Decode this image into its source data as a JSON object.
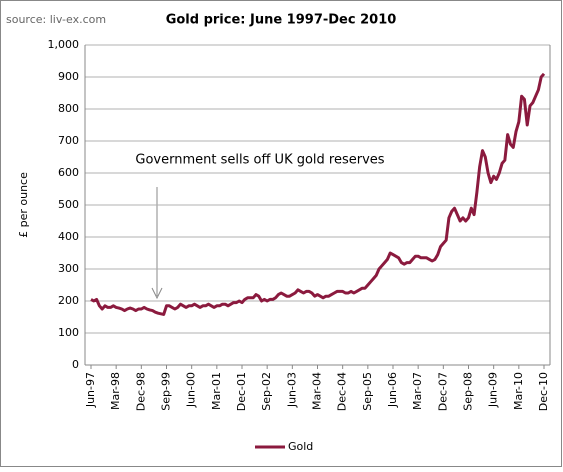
{
  "chart_data": {
    "type": "line",
    "title": "Gold price: June 1997-Dec 2010",
    "source": "source: liv-ex.com",
    "ylabel": "£ per ounce",
    "annotation": "Government sells off UK gold reserves",
    "categories": [
      "Jun-97",
      null,
      null,
      null,
      null,
      null,
      null,
      null,
      null,
      "Mar-98",
      null,
      null,
      null,
      null,
      null,
      null,
      null,
      null,
      "Dec-98",
      null,
      null,
      null,
      null,
      null,
      null,
      null,
      null,
      "Sep-99",
      null,
      null,
      null,
      null,
      null,
      null,
      null,
      null,
      "Jun-00",
      null,
      null,
      null,
      null,
      null,
      null,
      null,
      null,
      "Mar-01",
      null,
      null,
      null,
      null,
      null,
      null,
      null,
      null,
      "Dec-01",
      null,
      null,
      null,
      null,
      null,
      null,
      null,
      null,
      "Sep-02",
      null,
      null,
      null,
      null,
      null,
      null,
      null,
      null,
      "Jun-03",
      null,
      null,
      null,
      null,
      null,
      null,
      null,
      null,
      "Mar-04",
      null,
      null,
      null,
      null,
      null,
      null,
      null,
      null,
      "Dec-04",
      null,
      null,
      null,
      null,
      null,
      null,
      null,
      null,
      "Sep-05",
      null,
      null,
      null,
      null,
      null,
      null,
      null,
      null,
      "Jun-06",
      null,
      null,
      null,
      null,
      null,
      null,
      null,
      null,
      "Mar-07",
      null,
      null,
      null,
      null,
      null,
      null,
      null,
      null,
      "Dec-07",
      null,
      null,
      null,
      null,
      null,
      null,
      null,
      null,
      "Sep-08",
      null,
      null,
      null,
      null,
      null,
      null,
      null,
      null,
      "Jun-09",
      null,
      null,
      null,
      null,
      null,
      null,
      null,
      null,
      "Mar-10",
      null,
      null,
      null,
      null,
      null,
      null,
      null,
      null,
      "Dec-10"
    ],
    "series": [
      {
        "name": "Gold",
        "color": "#8b1a3e",
        "values": [
          205,
          200,
          205,
          185,
          175,
          185,
          180,
          180,
          185,
          180,
          178,
          175,
          170,
          175,
          178,
          175,
          170,
          175,
          175,
          180,
          175,
          172,
          170,
          165,
          162,
          160,
          158,
          185,
          185,
          180,
          175,
          180,
          190,
          185,
          180,
          185,
          185,
          190,
          185,
          180,
          185,
          185,
          190,
          185,
          180,
          185,
          185,
          190,
          190,
          185,
          190,
          195,
          195,
          200,
          195,
          205,
          210,
          210,
          210,
          220,
          215,
          200,
          205,
          200,
          205,
          205,
          210,
          220,
          225,
          220,
          215,
          215,
          220,
          225,
          235,
          230,
          225,
          230,
          230,
          225,
          215,
          220,
          215,
          210,
          215,
          215,
          220,
          225,
          230,
          230,
          230,
          225,
          225,
          230,
          225,
          230,
          235,
          240,
          240,
          250,
          260,
          270,
          280,
          300,
          310,
          320,
          330,
          350,
          345,
          340,
          335,
          320,
          315,
          320,
          320,
          330,
          340,
          340,
          335,
          335,
          335,
          330,
          325,
          330,
          345,
          370,
          380,
          390,
          460,
          480,
          490,
          470,
          450,
          460,
          450,
          460,
          490,
          470,
          540,
          620,
          670,
          650,
          600,
          570,
          590,
          580,
          600,
          630,
          640,
          720,
          690,
          680,
          730,
          760,
          840,
          830,
          750,
          810,
          820,
          840,
          860,
          900,
          910
        ]
      }
    ],
    "ylim": [
      0,
      1000
    ],
    "yticks": [
      0,
      100,
      200,
      300,
      400,
      500,
      600,
      700,
      800,
      900,
      {
        "value": 1000,
        "label": "1,000"
      }
    ],
    "grid": true,
    "legend": "bottom"
  }
}
